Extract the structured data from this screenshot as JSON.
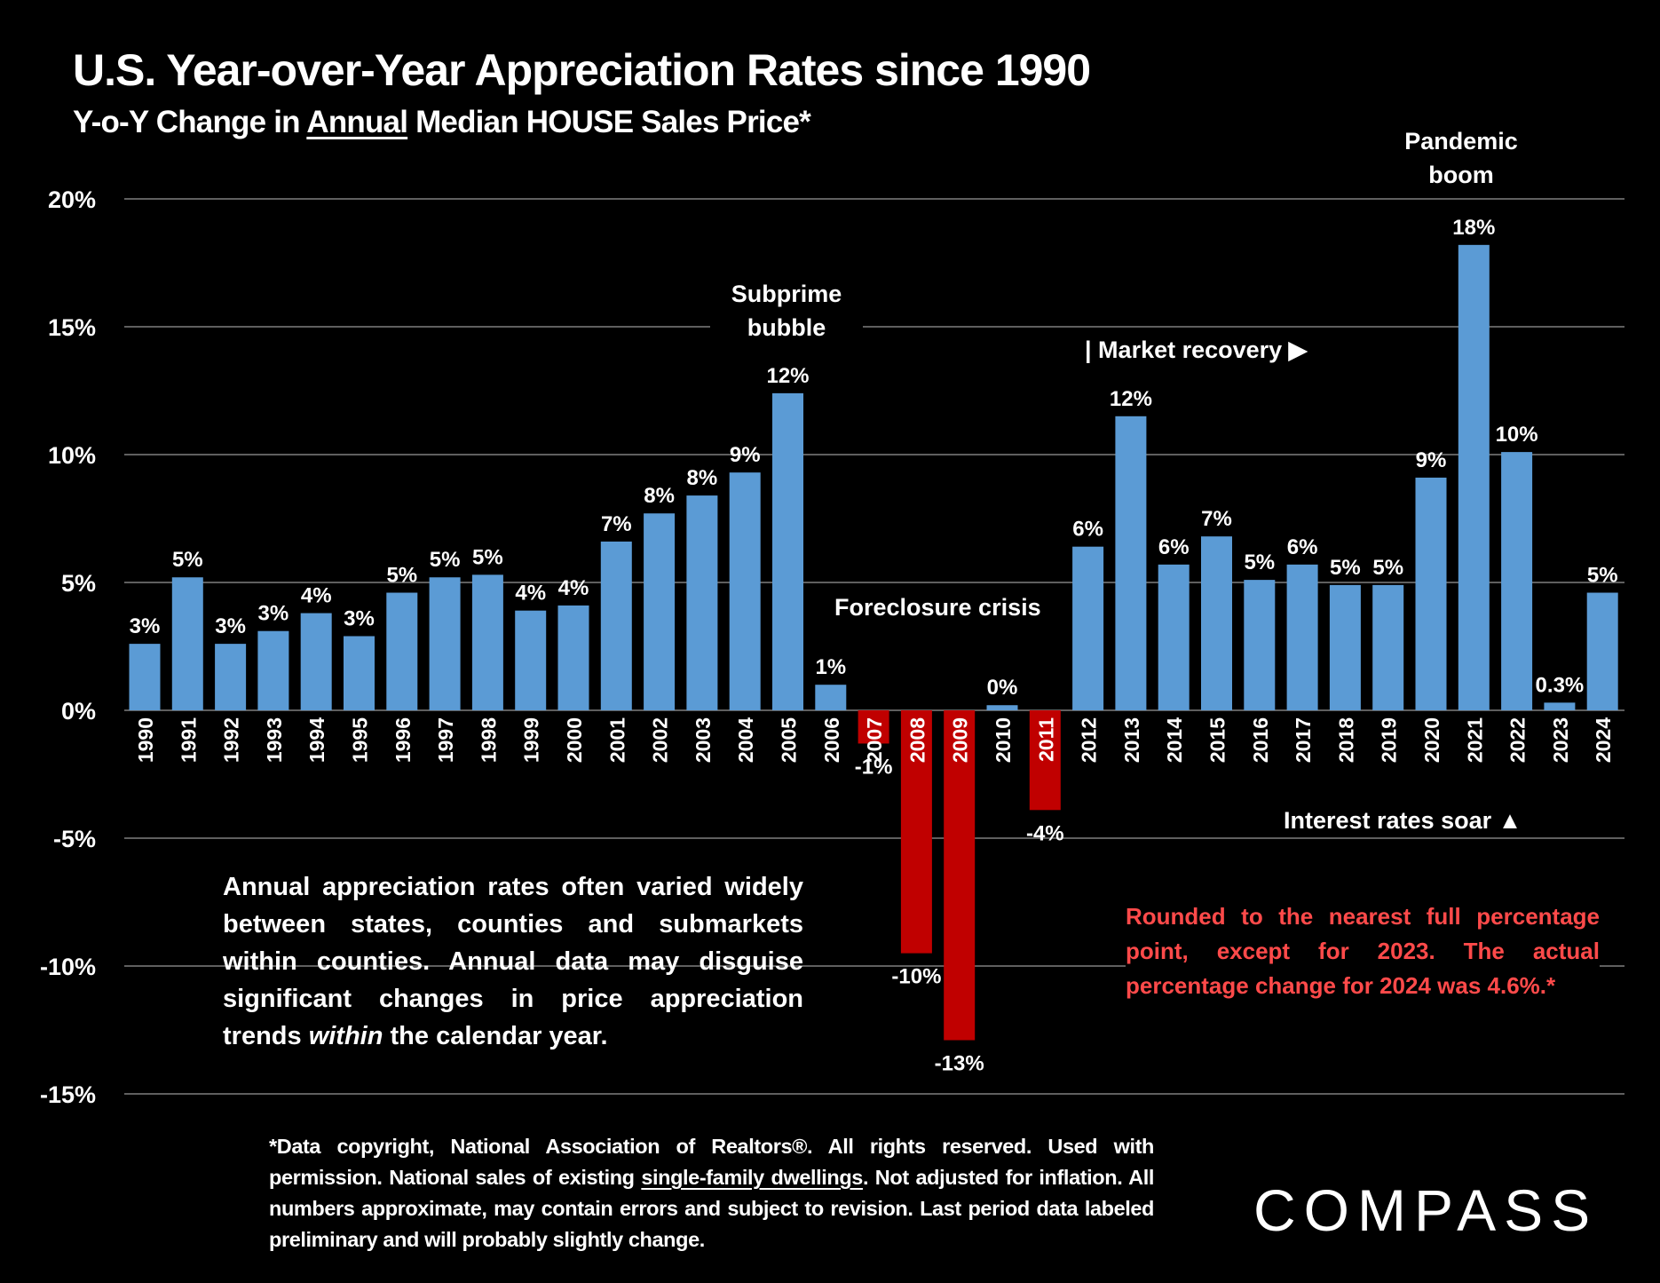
{
  "chart_data": {
    "type": "bar",
    "title": "U.S. Year-over-Year Appreciation Rates since 1990",
    "subtitle_parts": [
      "Y-o-Y Change in ",
      "Annual",
      " Median HOUSE Sales Price*"
    ],
    "categories": [
      "1990",
      "1991",
      "1992",
      "1993",
      "1994",
      "1995",
      "1996",
      "1997",
      "1998",
      "1999",
      "2000",
      "2001",
      "2002",
      "2003",
      "2004",
      "2005",
      "2006",
      "2007",
      "2008",
      "2009",
      "2010",
      "2011",
      "2012",
      "2013",
      "2014",
      "2015",
      "2016",
      "2017",
      "2018",
      "2019",
      "2020",
      "2021",
      "2022",
      "2023",
      "2024"
    ],
    "values": [
      2.6,
      5.2,
      2.6,
      3.1,
      3.8,
      2.9,
      4.6,
      5.2,
      5.3,
      3.9,
      4.1,
      6.6,
      7.7,
      8.4,
      9.3,
      12.4,
      1.0,
      -1.3,
      -9.5,
      -12.9,
      0.2,
      -3.9,
      6.4,
      11.5,
      5.7,
      6.8,
      5.1,
      5.7,
      4.9,
      4.9,
      9.1,
      18.2,
      10.1,
      0.3,
      4.6
    ],
    "data_labels": [
      "3%",
      "5%",
      "3%",
      "3%",
      "4%",
      "3%",
      "5%",
      "5%",
      "5%",
      "4%",
      "4%",
      "7%",
      "8%",
      "8%",
      "9%",
      "12%",
      "1%",
      "-1%",
      "-10%",
      "-13%",
      "0%",
      "-4%",
      "6%",
      "12%",
      "6%",
      "7%",
      "5%",
      "6%",
      "5%",
      "5%",
      "9%",
      "18%",
      "10%",
      "0.3%",
      "5%"
    ],
    "yticks": [
      20,
      15,
      10,
      5,
      0,
      -5,
      -10,
      -15
    ],
    "ytick_labels": [
      "20%",
      "15%",
      "10%",
      "5%",
      "0%",
      "-5%",
      "-10%",
      "-15%"
    ],
    "ylim": [
      -15,
      20
    ],
    "grid": true,
    "xlabel": "",
    "ylabel": "",
    "colors": {
      "positive": "#5b9bd5",
      "negative": "#c00000",
      "background": "#000000",
      "red_note": "#ff4a4a"
    },
    "annotations": {
      "subprime": [
        "Subprime",
        "bubble"
      ],
      "foreclosure": "Foreclosure crisis",
      "recovery": "| Market recovery ▶",
      "pandemic": [
        "Pandemic",
        "boom"
      ],
      "rates": "Interest rates soar ▲"
    }
  },
  "note": {
    "before": "Annual appreciation rates often varied widely between states, counties and submarkets within counties. Annual data may disguise significant changes in price appreciation trends ",
    "italic": "within",
    "after": " the calendar year."
  },
  "red_note": "Rounded to the nearest full percentage point, except for 2023. The actual percentage change for 2024 was 4.6%.*",
  "footer": {
    "before": "*Data copyright, National Association of Realtors®. All rights reserved. Used with permission. National sales of existing ",
    "underlined": "single-family dwellings",
    "after": ". Not adjusted for inflation. All numbers approximate, may contain errors and subject to revision. Last period data labeled preliminary and will probably slightly change."
  },
  "logo": "COMPASS"
}
